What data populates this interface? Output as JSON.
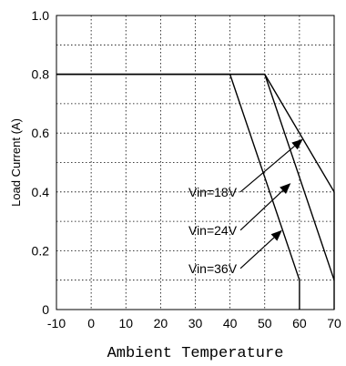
{
  "chart_data": {
    "type": "line",
    "title": "",
    "xlabel": "Ambient Temperature",
    "ylabel": "Load Current (A)",
    "xlim": [
      -10,
      70
    ],
    "ylim": [
      0,
      1.0
    ],
    "x_ticks": [
      -10,
      0,
      10,
      20,
      30,
      40,
      50,
      60,
      70
    ],
    "x_tick_labels": [
      "-10",
      "0",
      "10",
      "20",
      "30",
      "40",
      "50",
      "60",
      "70"
    ],
    "y_ticks": [
      0,
      0.2,
      0.4,
      0.6,
      0.8,
      1.0
    ],
    "y_tick_labels": [
      "0",
      "0.2",
      "0.4",
      "0.6",
      "0.8",
      "1.0"
    ],
    "y_minor_grid": [
      0.1,
      0.3,
      0.5,
      0.7,
      0.9
    ],
    "grid": true,
    "series": [
      {
        "name": "Vin=18V",
        "x": [
          -10,
          50,
          70,
          70
        ],
        "y": [
          0.8,
          0.8,
          0.4,
          0
        ]
      },
      {
        "name": "Vin=24V",
        "x": [
          -10,
          50,
          70
        ],
        "y": [
          0.8,
          0.8,
          0.1
        ]
      },
      {
        "name": "Vin=36V",
        "x": [
          -10,
          40,
          60,
          60
        ],
        "y": [
          0.8,
          0.8,
          0.1,
          0
        ]
      }
    ],
    "annotations": [
      {
        "text": "Vin=18V",
        "label_at": [
          43,
          0.4
        ],
        "arrow_to": [
          61,
          0.58
        ]
      },
      {
        "text": "Vin=24V",
        "label_at": [
          43,
          0.27
        ],
        "arrow_to": [
          57.5,
          0.43
        ]
      },
      {
        "text": "Vin=36V",
        "label_at": [
          43,
          0.14
        ],
        "arrow_to": [
          55,
          0.27
        ]
      }
    ]
  }
}
